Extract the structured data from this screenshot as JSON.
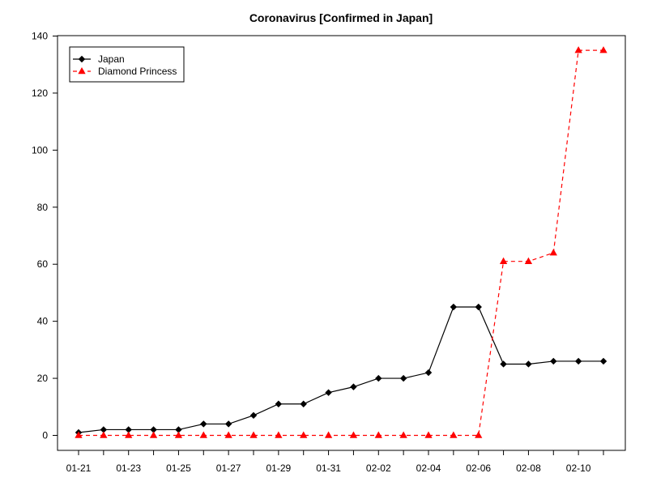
{
  "chart_data": {
    "type": "line",
    "title": "Coronavirus [Confirmed in Japan]",
    "xlabel": "",
    "ylabel": "",
    "x": [
      "01-21",
      "01-22",
      "01-23",
      "01-24",
      "01-25",
      "01-26",
      "01-27",
      "01-28",
      "01-29",
      "01-30",
      "01-31",
      "02-01",
      "02-02",
      "02-03",
      "02-04",
      "02-05",
      "02-06",
      "02-07",
      "02-08",
      "02-09",
      "02-10",
      "02-11"
    ],
    "x_tick_labels": [
      "01-21",
      "01-23",
      "01-25",
      "01-27",
      "01-29",
      "01-31",
      "02-02",
      "02-04",
      "02-06",
      "02-08",
      "02-10"
    ],
    "y_ticks": [
      0,
      20,
      40,
      60,
      80,
      100,
      120,
      140
    ],
    "ylim": [
      -4,
      140
    ],
    "grid": false,
    "legend_position": "top-left",
    "series": [
      {
        "name": "Japan",
        "color": "#000000",
        "line_style": "solid",
        "marker": "diamond",
        "values": [
          1,
          2,
          2,
          2,
          2,
          4,
          4,
          7,
          11,
          11,
          15,
          17,
          20,
          20,
          22,
          45,
          45,
          25,
          25,
          26,
          26,
          26
        ]
      },
      {
        "name": "Diamond Princess",
        "color": "#ff0000",
        "line_style": "dashed",
        "marker": "triangle",
        "values": [
          0,
          0,
          0,
          0,
          0,
          0,
          0,
          0,
          0,
          0,
          0,
          0,
          0,
          0,
          0,
          0,
          0,
          61,
          61,
          64,
          135,
          135
        ]
      }
    ]
  }
}
